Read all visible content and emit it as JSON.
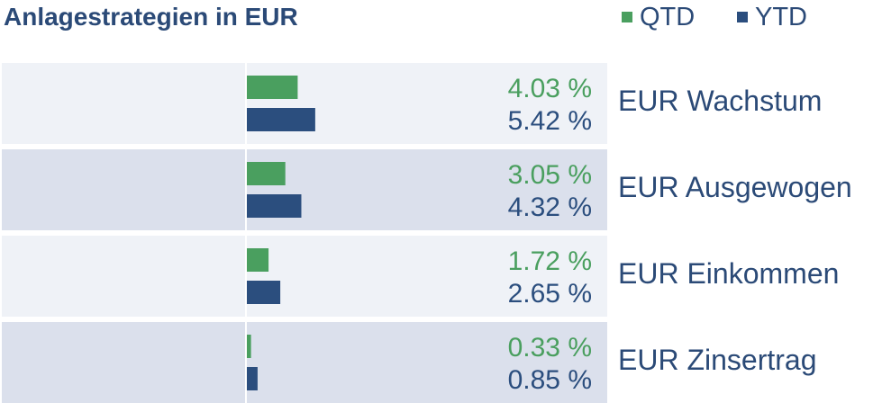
{
  "chart_data": {
    "type": "bar",
    "orientation": "horizontal",
    "title": "Anlagestrategien in EUR",
    "categories": [
      "EUR Wachstum",
      "EUR Ausgewogen",
      "EUR Einkommen",
      "EUR Zinsertrag"
    ],
    "series": [
      {
        "name": "QTD",
        "color": "#4a9f5f",
        "values": [
          4.03,
          3.05,
          1.72,
          0.33
        ],
        "labels": [
          "4.03 %",
          "3.05 %",
          "1.72 %",
          "0.33 %"
        ]
      },
      {
        "name": "YTD",
        "color": "#2b4e7e",
        "values": [
          5.42,
          4.32,
          2.65,
          0.85
        ],
        "labels": [
          "5.42 %",
          "4.32 %",
          "2.65 %",
          "0.85 %"
        ]
      }
    ],
    "legend_position": "top-right",
    "row_colors": [
      "#eff2f7",
      "#dbe0ec"
    ],
    "xlim": [
      0,
      12.5
    ]
  }
}
